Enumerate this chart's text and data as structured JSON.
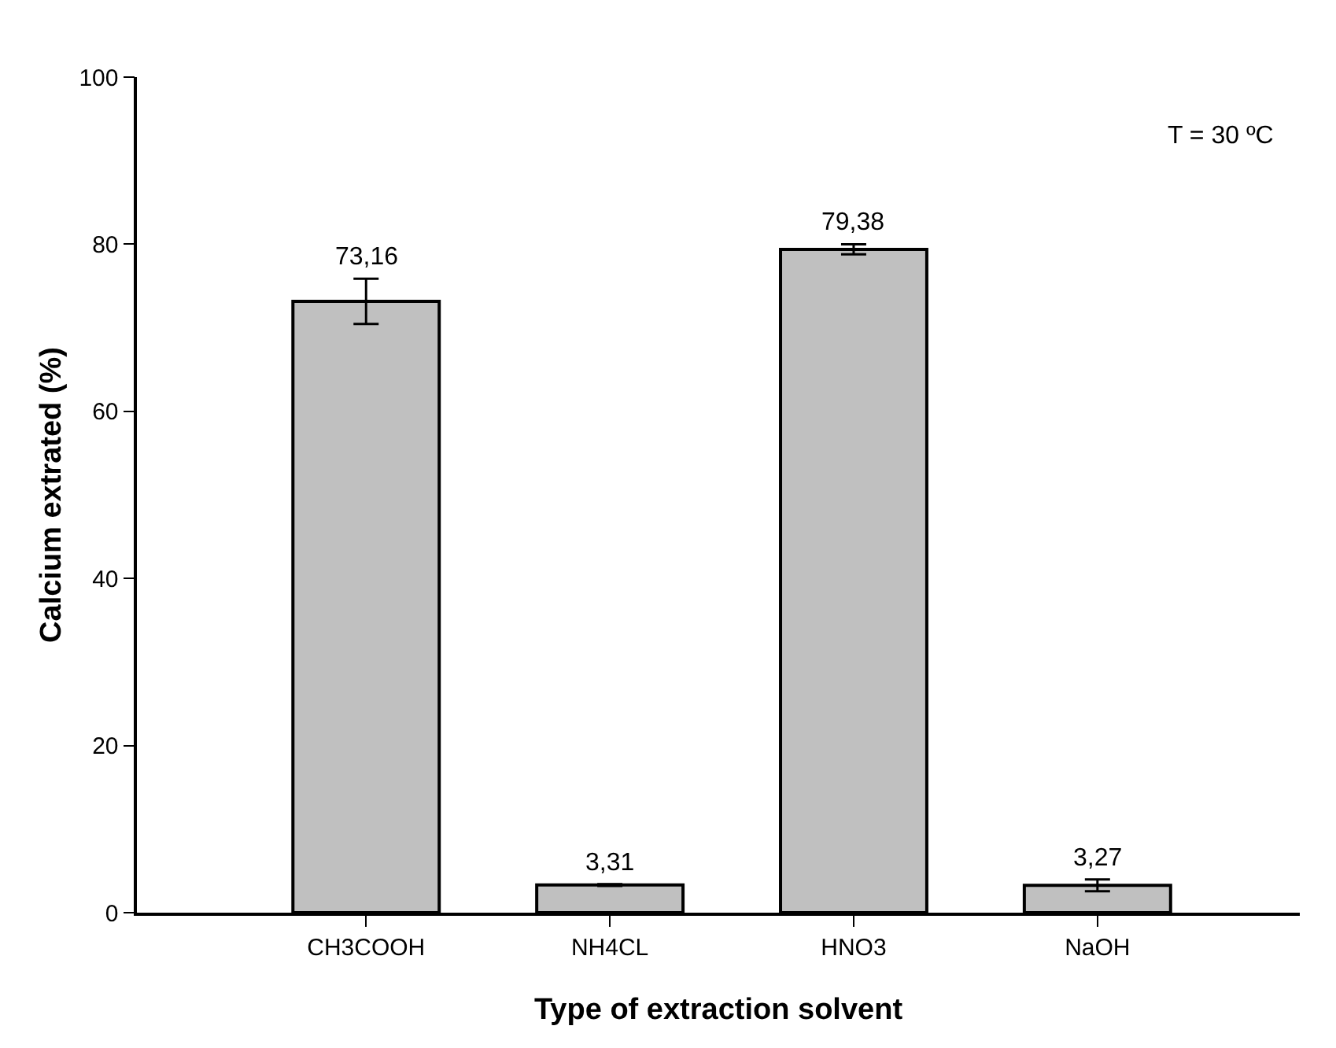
{
  "chart_data": {
    "type": "bar",
    "xlabel": "Type of extraction solvent",
    "ylabel": "Calcium extrated (%)",
    "categories": [
      "CH3COOH",
      "NH4CL",
      "HNO3",
      "NaOH"
    ],
    "values": [
      73.16,
      3.31,
      79.38,
      3.27
    ],
    "value_labels": [
      "73,16",
      "3,31",
      "79,38",
      "3,27"
    ],
    "errors": [
      2.7,
      0.1,
      0.6,
      0.7
    ],
    "color": "#c0c0c0",
    "ylim": [
      0,
      100
    ],
    "yticks": [
      0,
      20,
      40,
      60,
      80,
      100
    ],
    "grid": false,
    "legend": false,
    "annotations": [
      "T = 30 ºC"
    ]
  }
}
